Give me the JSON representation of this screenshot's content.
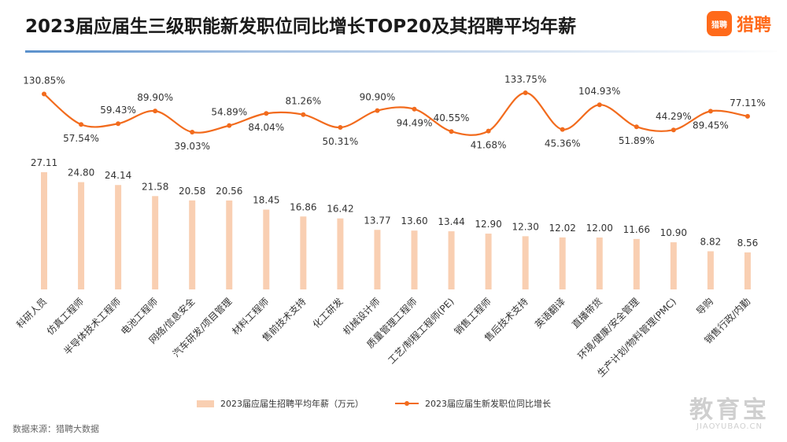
{
  "title": "2023届应届生三级职能新发职位同比增长TOP20及其招聘平均年薪",
  "brand": {
    "logo_text": "猎聘",
    "name": "猎聘"
  },
  "source": "数据来源：猎聘大数据",
  "watermark": {
    "main": "教育宝",
    "sub": "JIAOYUBAO.CN"
  },
  "colors": {
    "bar": "#f9cfb2",
    "line": "#f26b1d",
    "accent": "#ff6a1a"
  },
  "chart_data": {
    "type": "bar",
    "categories": [
      "科研人员",
      "仿真工程师",
      "半导体技术工程师",
      "电池工程师",
      "网络/信息安全",
      "汽车研发/项目管理",
      "材料工程师",
      "售前技术支持",
      "化工研发",
      "机械设计师",
      "质量管理工程师",
      "工艺/制程工程师(PE)",
      "销售工程师",
      "售后技术支持",
      "英语翻译",
      "直播带货",
      "环境/健康/安全管理",
      "生产计划/物料管理(PMC)",
      "导购",
      "销售行政/内勤"
    ],
    "series": [
      {
        "name": "2023届应届生招聘平均年薪（万元）",
        "type": "bar",
        "values": [
          27.11,
          24.8,
          24.14,
          21.58,
          20.58,
          20.56,
          18.45,
          16.86,
          16.42,
          13.77,
          13.6,
          13.44,
          12.9,
          12.3,
          12.02,
          12.0,
          11.66,
          10.9,
          8.82,
          8.56
        ],
        "labels": [
          "27.11",
          "24.80",
          "24.14",
          "21.58",
          "20.58",
          "20.56",
          "18.45",
          "16.86",
          "16.42",
          "13.77",
          "13.60",
          "13.44",
          "12.90",
          "12.30",
          "12.02",
          "12.00",
          "11.66",
          "10.90",
          "8.82",
          "8.56"
        ]
      },
      {
        "name": "2023届应届生新发职位同比增长",
        "type": "line",
        "values": [
          130.85,
          57.54,
          59.43,
          89.9,
          39.03,
          54.89,
          84.04,
          81.26,
          50.31,
          90.9,
          94.49,
          40.55,
          41.68,
          133.75,
          45.36,
          104.93,
          51.89,
          44.29,
          89.45,
          77.11
        ],
        "labels": [
          "130.85%",
          "57.54%",
          "59.43%",
          "89.90%",
          "39.03%",
          "54.89%",
          "84.04%",
          "81.26%",
          "50.31%",
          "90.90%",
          "94.49%",
          "40.55%",
          "41.68%",
          "133.75%",
          "45.36%",
          "104.93%",
          "51.89%",
          "44.29%",
          "89.45%",
          "77.11%"
        ],
        "label_position": [
          "above",
          "below",
          "above",
          "above",
          "below",
          "above",
          "below",
          "above",
          "below",
          "above",
          "below",
          "above",
          "below",
          "above",
          "below",
          "above",
          "below",
          "above",
          "below",
          "above"
        ]
      }
    ],
    "legend": "bottom-center",
    "grid": false
  }
}
